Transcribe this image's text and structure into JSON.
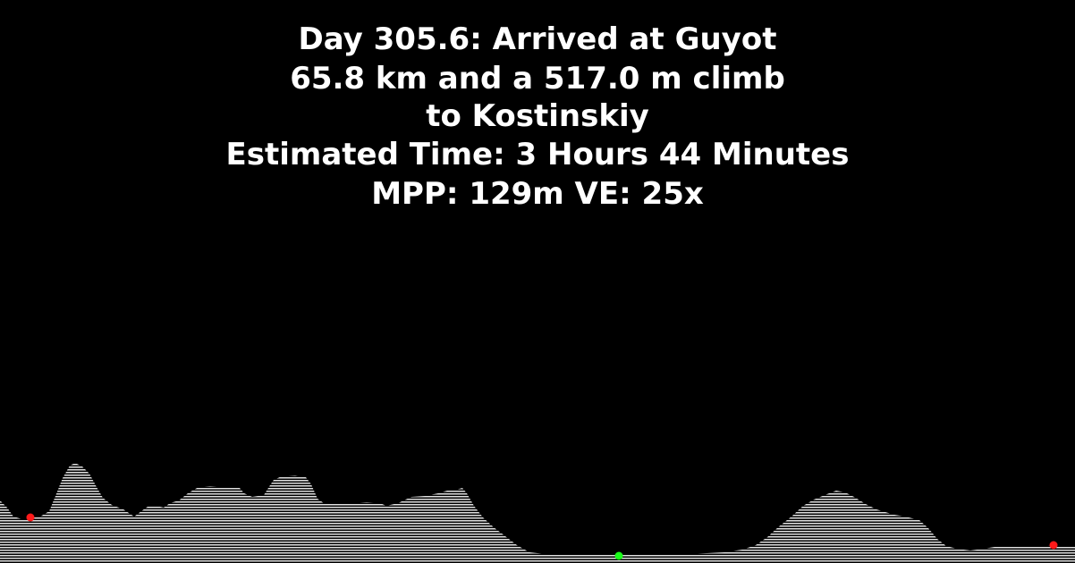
{
  "header": {
    "line1": "Day 305.6: Arrived at Guyot",
    "line2": "65.8 km and a 517.0 m climb",
    "line3": "to Kostinskiy",
    "line4": "Estimated Time: 3 Hours 44 Minutes",
    "line5": "MPP: 129m VE: 25x"
  },
  "colors": {
    "background": "#000000",
    "text": "#ffffff",
    "terrain_stripe": "#d9d9d9",
    "start_marker": "#ff1a1a",
    "mid_marker": "#1aff1a",
    "end_marker": "#ff1a1a"
  }
}
